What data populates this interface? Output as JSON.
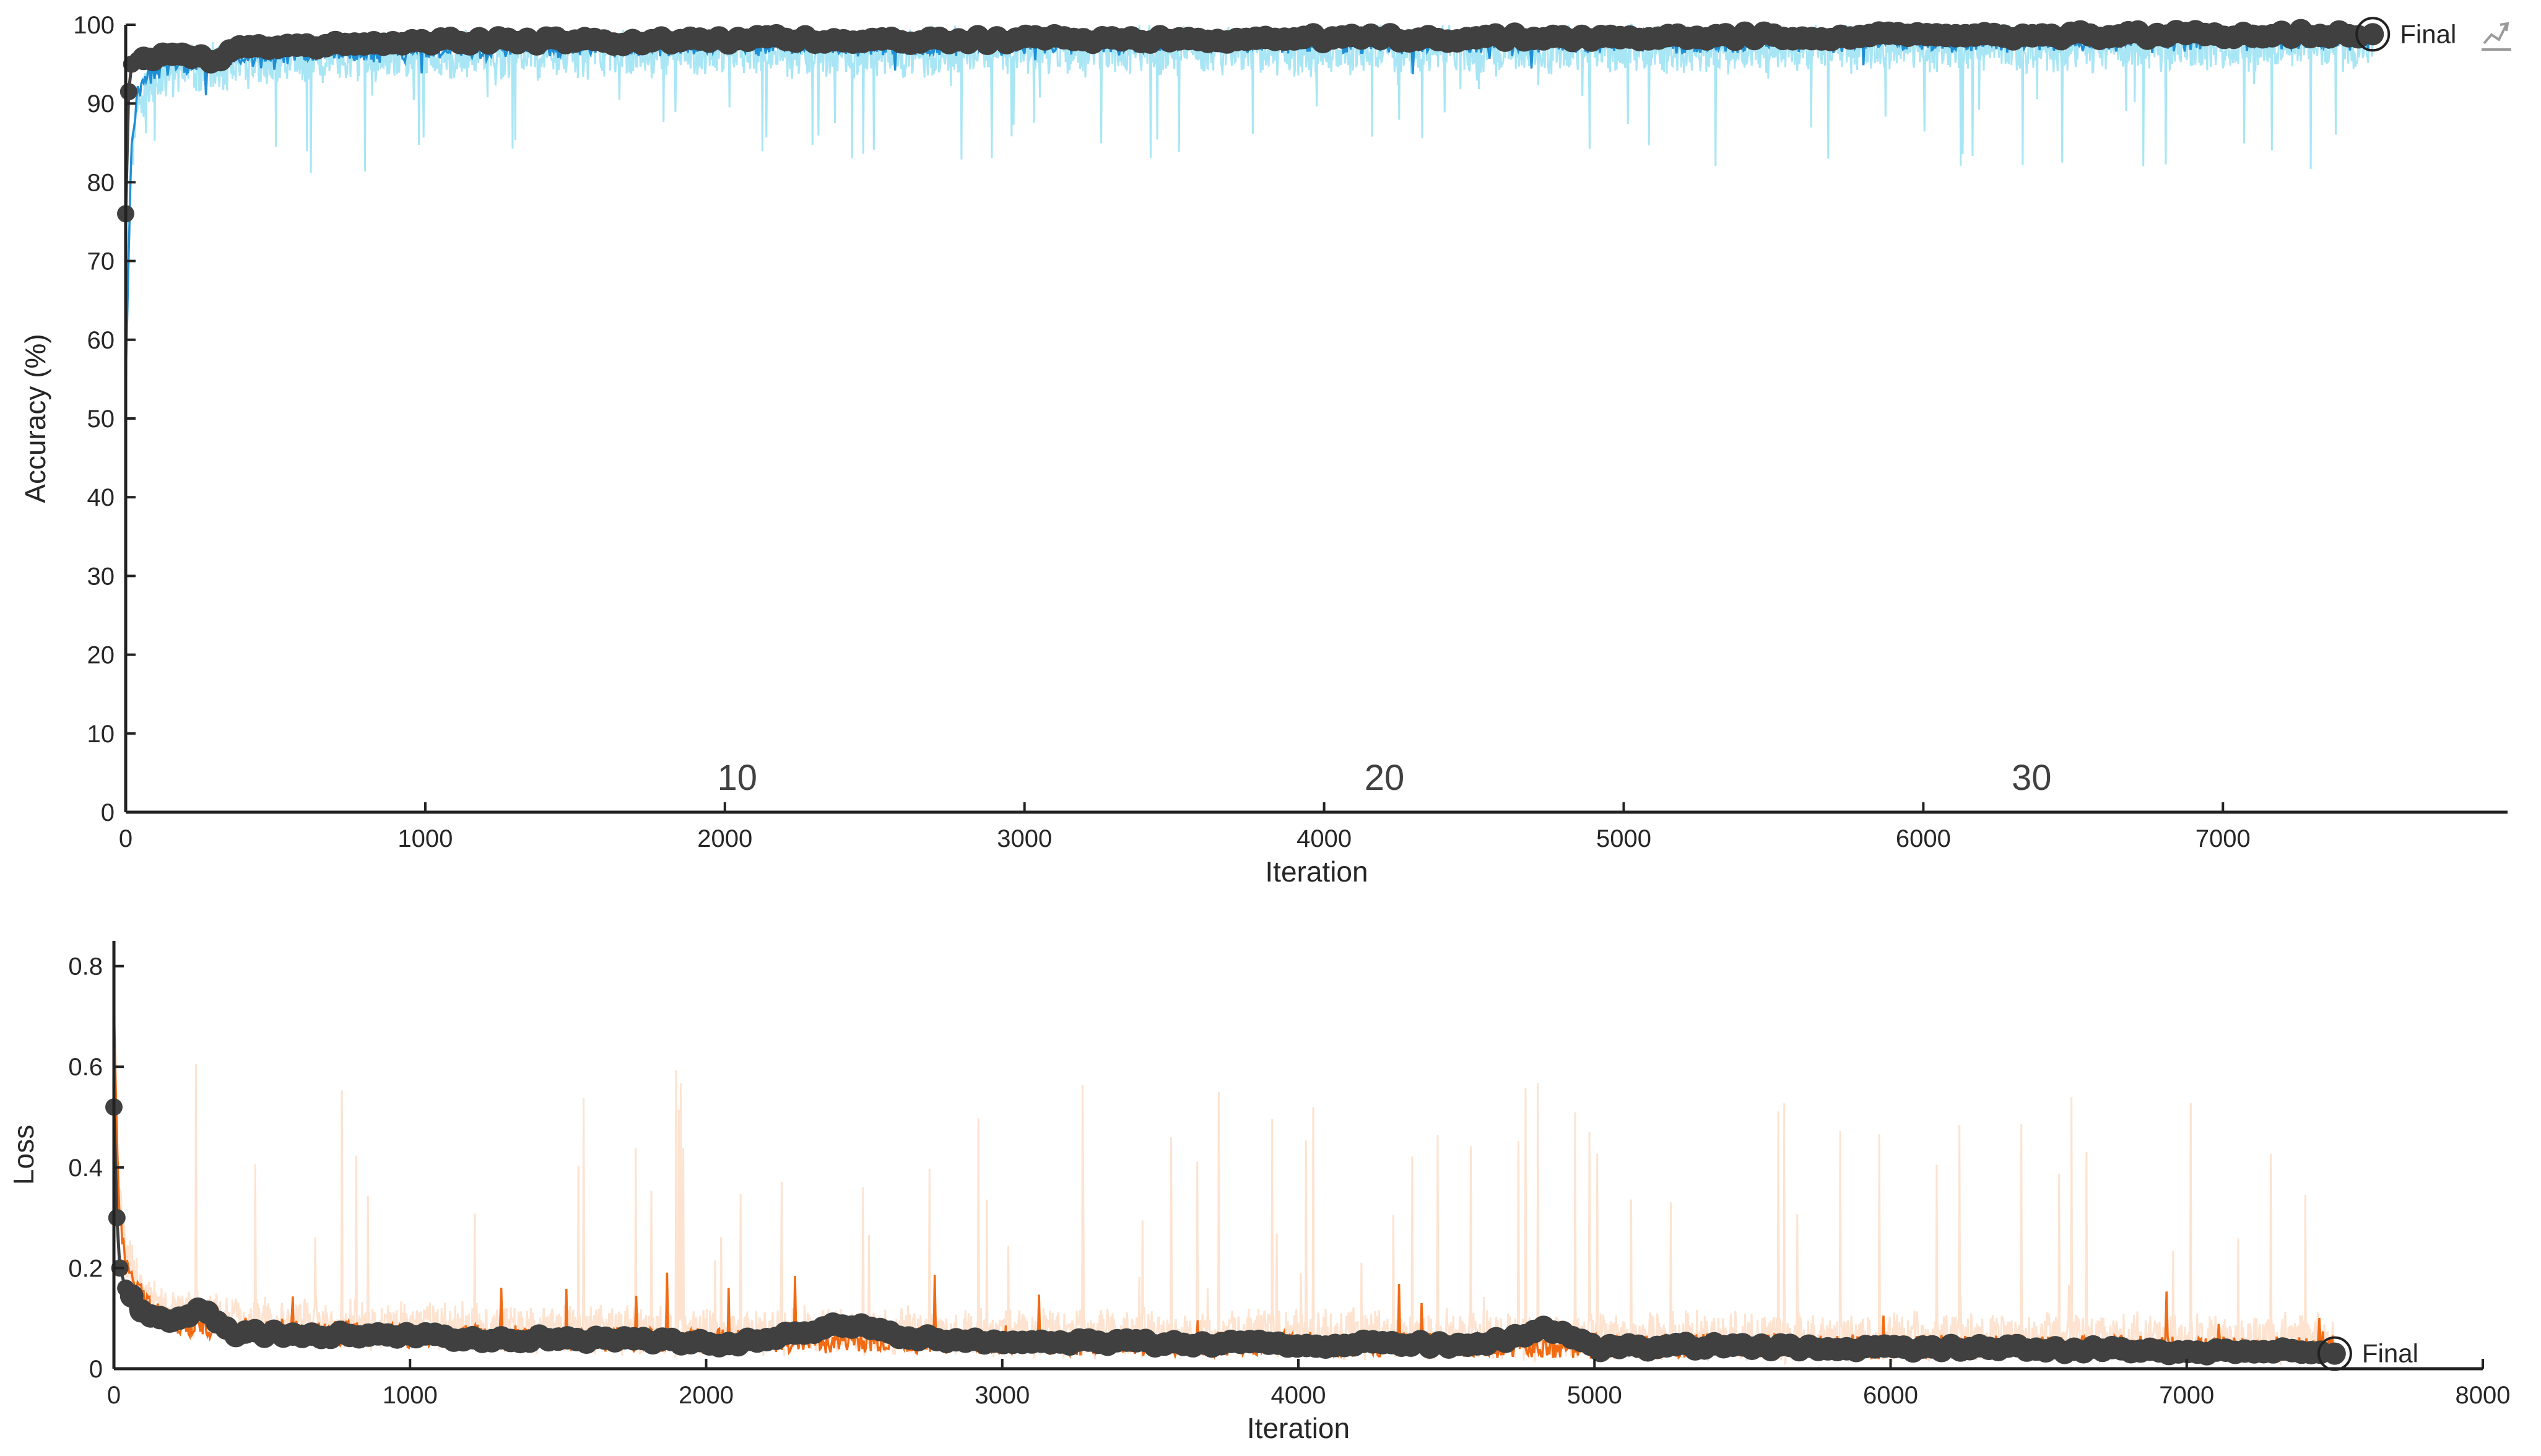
{
  "chart_data": [
    {
      "type": "line",
      "xlabel": "Iteration",
      "ylabel": "Accuracy (%)",
      "xlim": [
        0,
        7950
      ],
      "ylim": [
        0,
        100
      ],
      "xticks": [
        0,
        1000,
        2000,
        3000,
        4000,
        5000,
        6000,
        7000
      ],
      "yticks": [
        0,
        10,
        20,
        30,
        40,
        50,
        60,
        70,
        80,
        90,
        100
      ],
      "epoch_labels": [
        {
          "label": "10",
          "x": 2000
        },
        {
          "label": "20",
          "x": 4160
        },
        {
          "label": "30",
          "x": 6320
        }
      ],
      "final_label": "Final",
      "colors": {
        "raw": "#a8e6f5",
        "smoothed": "#1f8fd6",
        "validation": "#404040"
      },
      "series": [
        {
          "x": [
            0,
            10,
            20,
            40,
            80,
            150,
            250,
            400,
            600,
            800,
            1000,
            1500,
            2000,
            2500,
            3000,
            3500,
            4000,
            4500,
            5000,
            5500,
            6000,
            6500,
            7000,
            7500
          ],
          "values": [
            56,
            72,
            85,
            92,
            94,
            95.5,
            96,
            96.5,
            97,
            97.2,
            97.5,
            97.8,
            98,
            98,
            98.2,
            98.2,
            98.3,
            98.3,
            98.4,
            98.5,
            98.5,
            98.6,
            98.7,
            98.8
          ]
        },
        {
          "x": [
            0,
            10,
            20,
            40,
            80,
            150,
            200,
            250,
            300,
            350,
            400,
            500,
            600,
            700,
            800,
            900,
            1000,
            1200,
            1400,
            1600,
            1800,
            2000,
            2200,
            2500,
            2800,
            3000,
            3200,
            3500,
            3800,
            4000,
            4200,
            4500,
            4800,
            5000,
            5200,
            5500,
            5800,
            6000,
            6200,
            6500,
            6800,
            7000,
            7200,
            7500
          ],
          "values": [
            76,
            91.5,
            95,
            95.5,
            96,
            96,
            96.5,
            96,
            95.5,
            96.8,
            97.2,
            97,
            97,
            97.5,
            97.5,
            97.5,
            97.8,
            98,
            98,
            97.8,
            98,
            98,
            98.2,
            98,
            98,
            98.2,
            98.2,
            98.2,
            98.2,
            98.3,
            98.3,
            98.3,
            98.4,
            98.2,
            98.5,
            98.5,
            98.6,
            98.6,
            98.5,
            98.7,
            98.7,
            98.8,
            98.8,
            98.8
          ]
        }
      ]
    },
    {
      "type": "line",
      "xlabel": "Iteration",
      "ylabel": "Loss",
      "xlim": [
        0,
        8000
      ],
      "ylim": [
        0,
        0.85
      ],
      "xticks": [
        0,
        1000,
        2000,
        3000,
        4000,
        5000,
        6000,
        7000,
        8000
      ],
      "yticks": [
        0,
        0.2,
        0.4,
        0.6,
        0.8
      ],
      "final_label": "Final",
      "colors": {
        "raw": "#fde3d0",
        "smoothed": "#f26a12",
        "validation": "#404040"
      },
      "series": [
        {
          "x": [
            0,
            10,
            20,
            40,
            80,
            150,
            250,
            400,
            600,
            800,
            1000,
            1500,
            2000,
            2500,
            3000,
            3500,
            4000,
            4500,
            5000,
            5500,
            6000,
            6500,
            7000,
            7500
          ],
          "values": [
            0.7,
            0.45,
            0.3,
            0.2,
            0.15,
            0.1,
            0.085,
            0.075,
            0.07,
            0.065,
            0.06,
            0.055,
            0.05,
            0.05,
            0.048,
            0.045,
            0.045,
            0.042,
            0.04,
            0.04,
            0.038,
            0.037,
            0.035,
            0.034
          ]
        },
        {
          "x": [
            0,
            10,
            20,
            40,
            80,
            150,
            200,
            250,
            300,
            400,
            500,
            700,
            900,
            1000,
            1200,
            1500,
            1800,
            2000,
            2200,
            2450,
            2700,
            3000,
            3300,
            3500,
            3800,
            4000,
            4300,
            4600,
            4850,
            5000,
            5300,
            5600,
            6000,
            6300,
            6600,
            7000,
            7300,
            7500
          ],
          "values": [
            0.52,
            0.3,
            0.2,
            0.16,
            0.12,
            0.1,
            0.09,
            0.11,
            0.12,
            0.07,
            0.07,
            0.065,
            0.07,
            0.065,
            0.06,
            0.06,
            0.055,
            0.05,
            0.055,
            0.09,
            0.06,
            0.055,
            0.055,
            0.05,
            0.05,
            0.048,
            0.05,
            0.046,
            0.08,
            0.04,
            0.045,
            0.042,
            0.04,
            0.042,
            0.038,
            0.035,
            0.038,
            0.03
          ]
        }
      ]
    }
  ]
}
